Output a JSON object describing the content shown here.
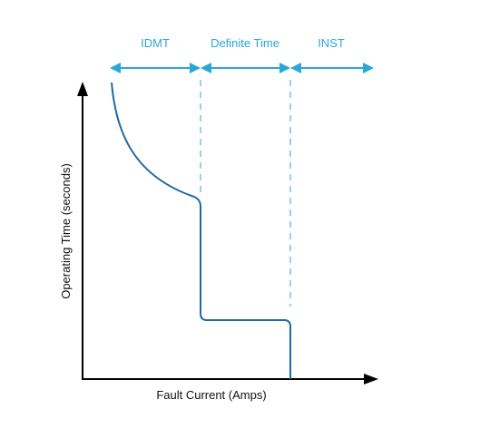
{
  "diagram": {
    "regions": [
      {
        "label": "IDMT"
      },
      {
        "label": "Definite Time"
      },
      {
        "label": "INST"
      }
    ],
    "x_axis_label": "Fault Current (Amps)",
    "y_axis_label": "Operating Time (seconds)"
  },
  "colors": {
    "accent": "#2aa7d6",
    "curve": "#1f6aa5",
    "axis": "#000000",
    "text": "#111111"
  }
}
